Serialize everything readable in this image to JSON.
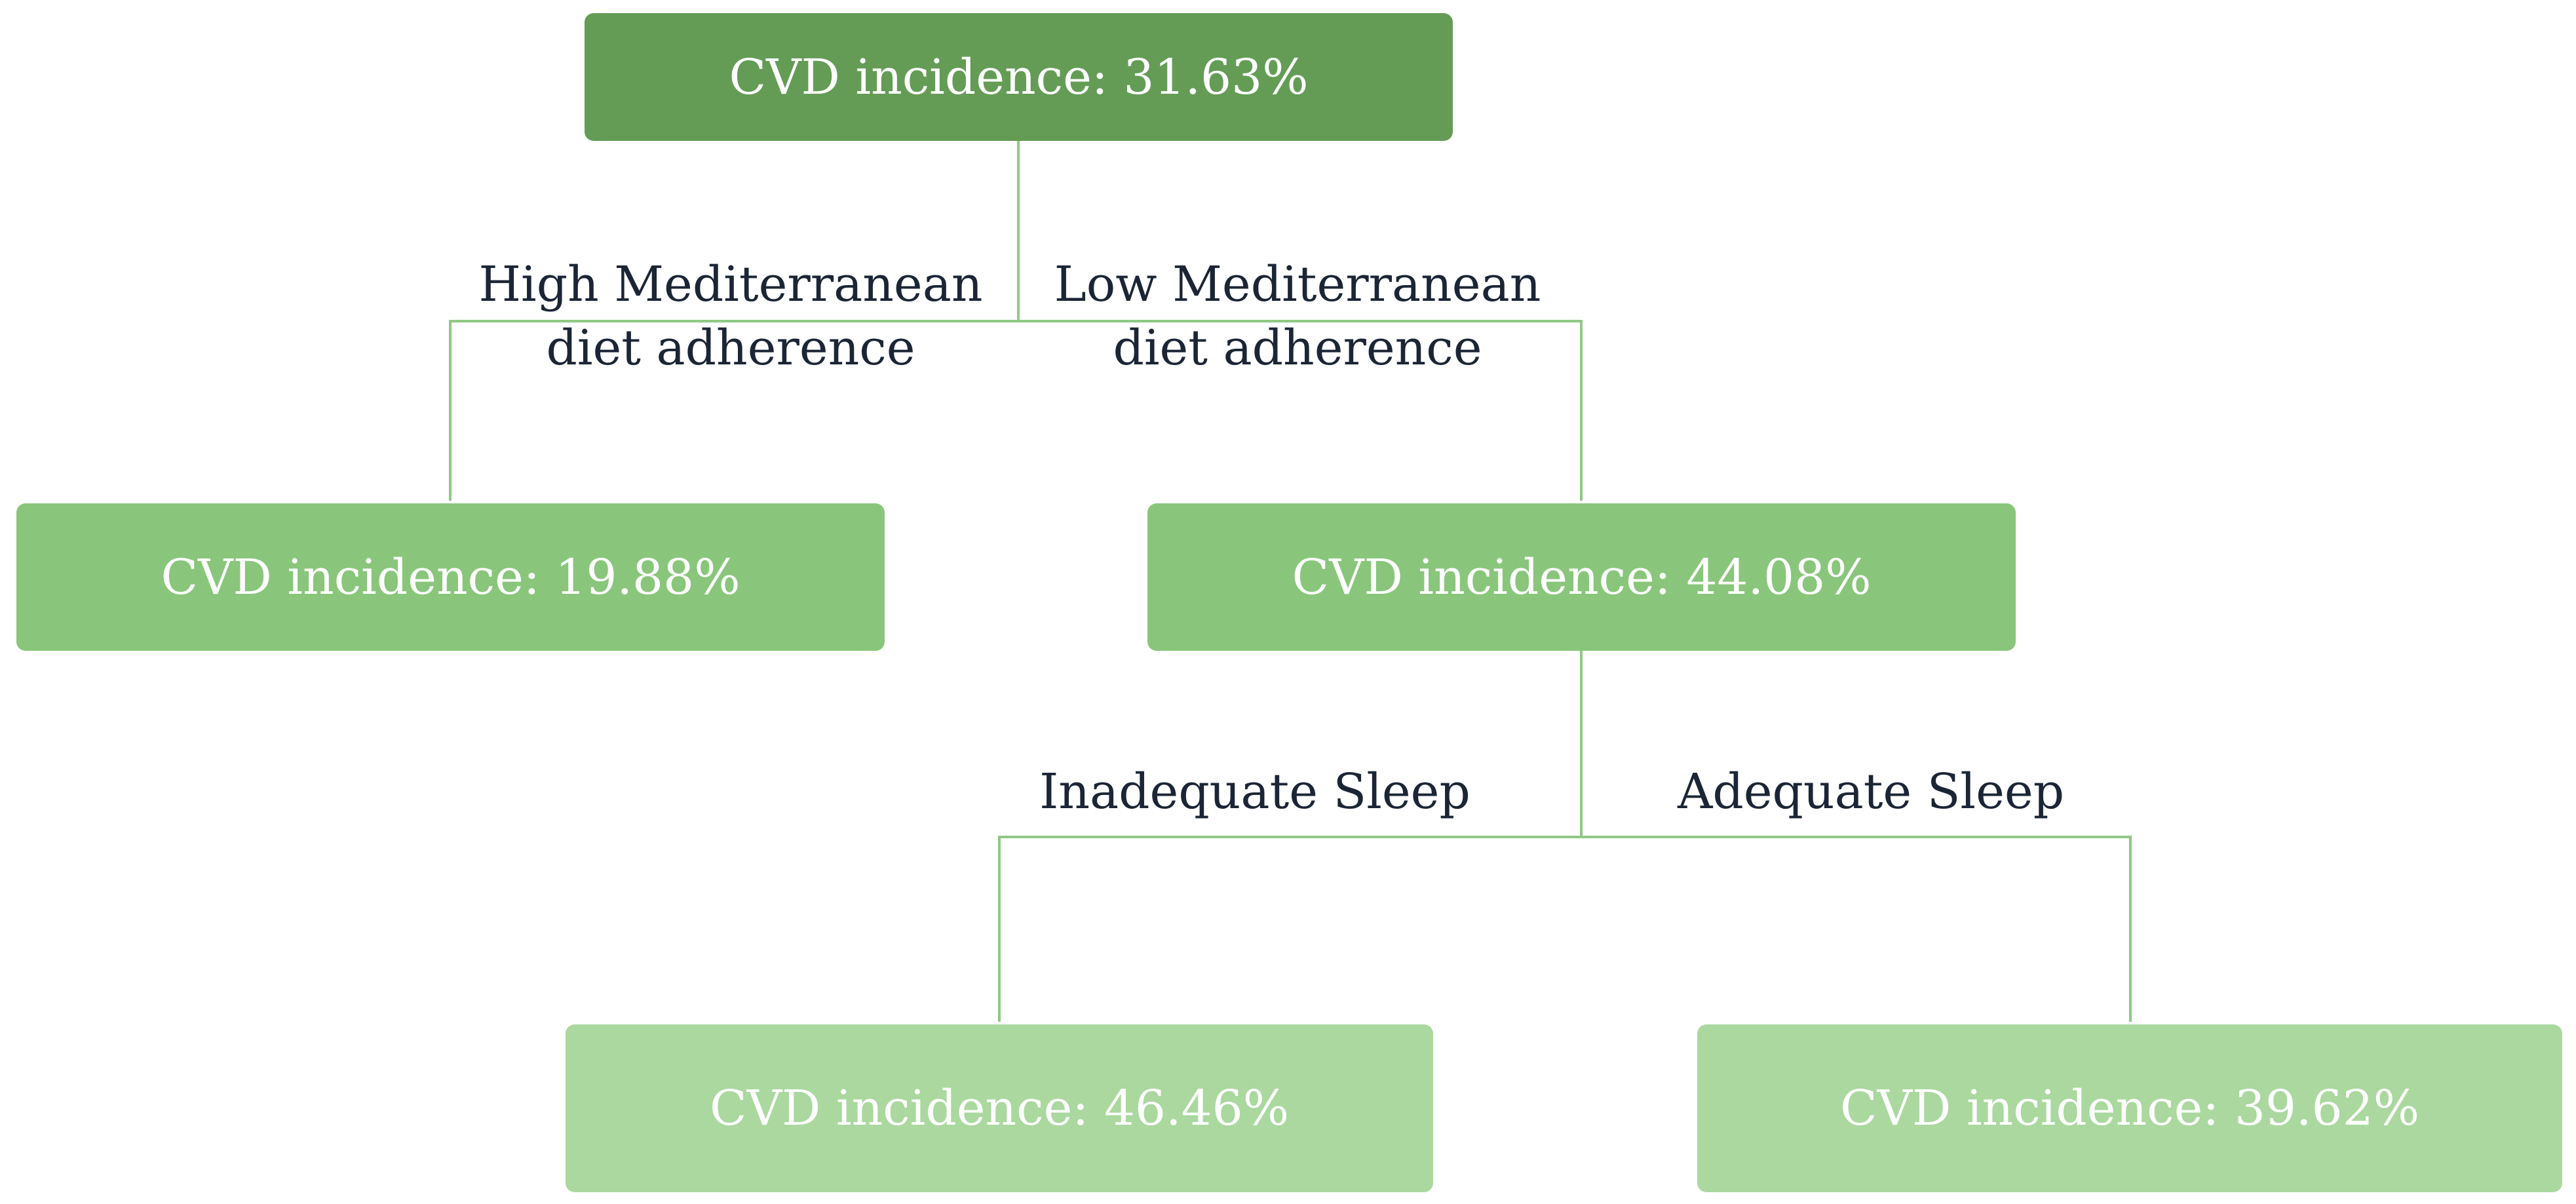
{
  "diagram": {
    "colors": {
      "root_fill": "#649c56",
      "level1_fill": "#89c67b",
      "level2_fill": "#aad89f",
      "connector": "#8fc985",
      "node_text": "#ffffff",
      "edge_label_text": "#1b2536"
    },
    "nodes": {
      "root": {
        "label": "CVD incidence: 31.63%"
      },
      "high_adherence": {
        "label": "CVD incidence: 19.88%"
      },
      "low_adherence": {
        "label": "CVD incidence: 44.08%"
      },
      "inadequate_sleep": {
        "label": "CVD incidence: 46.46%"
      },
      "adequate_sleep": {
        "label": "CVD incidence: 39.62%"
      }
    },
    "edges": {
      "high_adherence": {
        "line1": "High Mediterranean",
        "line2": "diet adherence"
      },
      "low_adherence": {
        "line1": "Low Mediterranean",
        "line2": "diet adherence"
      },
      "inadequate_sleep": {
        "label": "Inadequate Sleep"
      },
      "adequate_sleep": {
        "label": "Adequate Sleep"
      }
    }
  }
}
